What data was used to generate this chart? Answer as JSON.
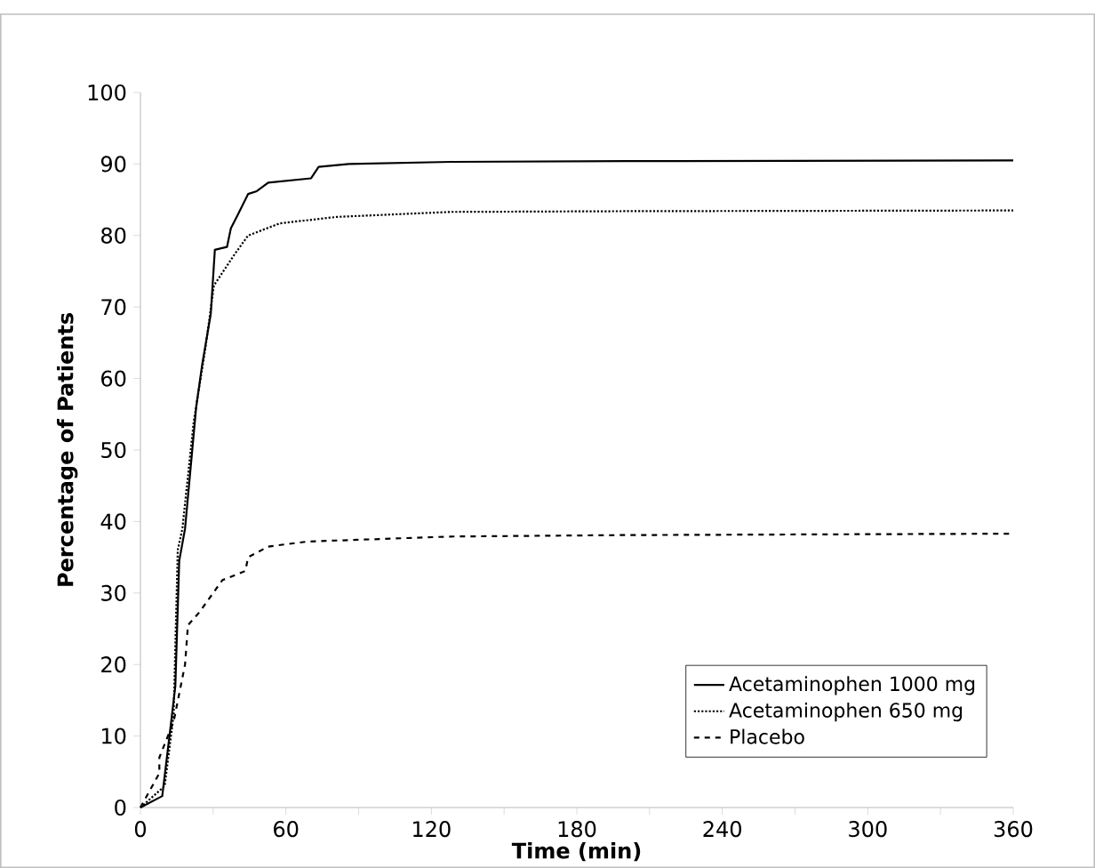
{
  "chart_data": {
    "type": "line",
    "xlabel": "Time (min)",
    "ylabel": "Percentage of Patients",
    "xlim": [
      0,
      360
    ],
    "ylim": [
      0,
      100
    ],
    "xticks": [
      0,
      {
        "value": 30,
        "label": null
      },
      60,
      {
        "value": 90,
        "label": null
      },
      120,
      {
        "value": 150,
        "label": null
      },
      180,
      {
        "value": 210,
        "label": null
      },
      240,
      {
        "value": 270,
        "label": null
      },
      300,
      {
        "value": 330,
        "label": null
      },
      360
    ],
    "yticks": [
      0,
      10,
      20,
      30,
      40,
      50,
      60,
      70,
      80,
      90,
      100
    ],
    "grid": false,
    "legend": "bottom right",
    "marker": "none",
    "series": [
      {
        "name": "Acetaminophen 1000 mg",
        "color": "#000000",
        "line_style": "solid",
        "x": [
          0,
          9,
          12.5,
          14.4,
          16,
          18.4,
          23,
          25.5,
          29,
          30.7,
          35.7,
          37.3,
          39.7,
          44.4,
          48,
          52.7,
          70.4,
          73.5,
          86,
          128,
          200,
          360
        ],
        "values": [
          0,
          1.6,
          11.5,
          17,
          34.5,
          39,
          56,
          62,
          69,
          78,
          78.4,
          81,
          82.6,
          85.8,
          86.2,
          87.4,
          88,
          89.6,
          90,
          90.3,
          90.4,
          90.5
        ]
      },
      {
        "name": "Acetaminophen 650 mg",
        "color": "#000000",
        "line_style": "dotted",
        "x": [
          0,
          10,
          13.7,
          15.4,
          17.3,
          22,
          26.7,
          30.3,
          33.8,
          38.5,
          44.4,
          57.5,
          81,
          128,
          200,
          360
        ],
        "values": [
          0,
          3,
          13,
          36,
          39,
          54,
          64,
          73,
          74.8,
          77.2,
          80,
          81.7,
          82.6,
          83.3,
          83.4,
          83.5
        ]
      },
      {
        "name": "Placebo",
        "color": "#000000",
        "line_style": "dashed",
        "x": [
          0,
          7.8,
          7.8,
          13.7,
          18.4,
          19.6,
          24.3,
          33.8,
          43.3,
          44.4,
          52.7,
          69,
          128,
          200,
          360
        ],
        "values": [
          0,
          4.8,
          7,
          12,
          20,
          25.5,
          27.3,
          31.8,
          33.1,
          35,
          36.5,
          37.2,
          37.9,
          38.1,
          38.3
        ]
      }
    ]
  }
}
